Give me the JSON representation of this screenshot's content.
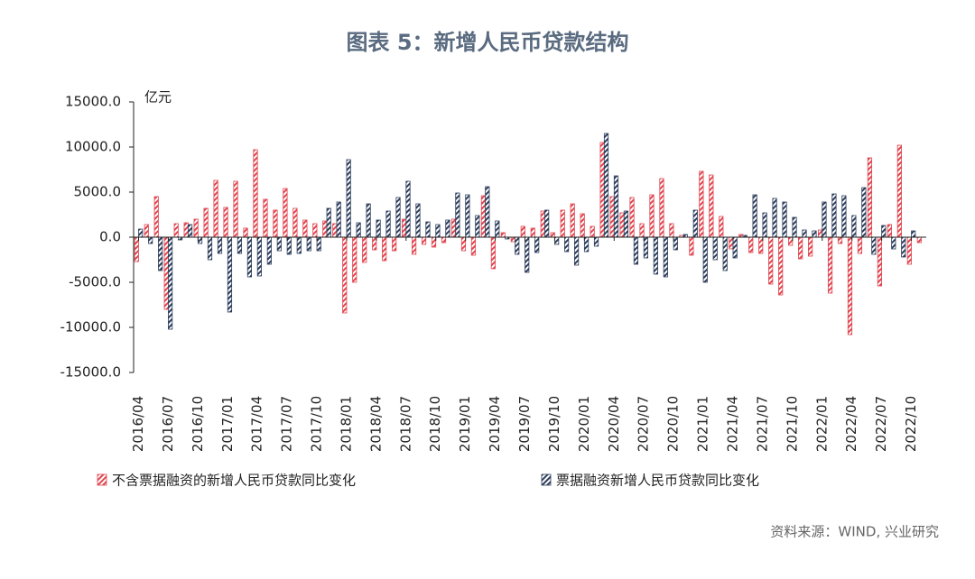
{
  "chart_data": {
    "type": "bar",
    "title": "图表 5：新增人民币贷款结构",
    "unit_label": "亿元",
    "source": "资料来源：WIND, 兴业研究",
    "categories": [
      "2016/04",
      null,
      null,
      "2016/07",
      null,
      null,
      "2016/10",
      null,
      null,
      "2017/01",
      null,
      null,
      "2017/04",
      null,
      null,
      "2017/07",
      null,
      null,
      "2017/10",
      null,
      null,
      "2018/01",
      null,
      null,
      "2018/04",
      null,
      null,
      "2018/07",
      null,
      null,
      "2018/10",
      null,
      null,
      "2019/01",
      null,
      null,
      "2019/04",
      null,
      null,
      "2019/07",
      null,
      null,
      "2019/10",
      null,
      null,
      "2020/01",
      null,
      null,
      "2020/04",
      null,
      null,
      "2020/07",
      null,
      null,
      "2020/10",
      null,
      null,
      "2021/01",
      null,
      null,
      "2021/04",
      null,
      null,
      "2021/07",
      null,
      null,
      "2021/10",
      null,
      null,
      "2022/01",
      null,
      null,
      "2022/04",
      null,
      null,
      "2022/07",
      null,
      null,
      "2022/10",
      null
    ],
    "series": [
      {
        "name": "不含票据融资的新增人民币贷款同比变化",
        "color": "#e0454f",
        "values": [
          -2700,
          1400,
          4500,
          -8000,
          1500,
          1600,
          2000,
          3200,
          6300,
          3300,
          6200,
          1000,
          9700,
          4200,
          3000,
          5400,
          3200,
          1900,
          1500,
          1800,
          1500,
          -8400,
          -5000,
          -2800,
          -1400,
          -2600,
          -1500,
          2000,
          -1900,
          -800,
          -1100,
          -600,
          2000,
          -1500,
          -2000,
          4600,
          -3500,
          500,
          -500,
          1200,
          1000,
          2900,
          500,
          3000,
          3700,
          2600,
          1200,
          10500,
          4500,
          2700,
          4400,
          1500,
          4700,
          6500,
          1500,
          200,
          -2000,
          7300,
          6900,
          2300,
          -1300,
          300,
          -1700,
          -1800,
          -5200,
          -6400,
          -900,
          -2400,
          -2100,
          800,
          -6200,
          -700,
          -10800,
          -1800,
          8800,
          -5400,
          1400,
          10200,
          -3000,
          -600
        ]
      },
      {
        "name": "票据融资新增人民币贷款同比变化",
        "color": "#2d3e5c",
        "values": [
          900,
          -700,
          -3700,
          -10200,
          -300,
          1400,
          -700,
          -2500,
          -1800,
          -8300,
          -1800,
          -4400,
          -4300,
          -3000,
          -1500,
          -1900,
          -1800,
          -1500,
          -1500,
          3200,
          3900,
          8600,
          1600,
          3700,
          1900,
          2900,
          4400,
          6200,
          3700,
          1700,
          1400,
          1900,
          4900,
          4700,
          2400,
          5600,
          1800,
          -200,
          -1900,
          -3900,
          -1700,
          3000,
          -800,
          -1600,
          -3100,
          -1600,
          -1000,
          11500,
          6800,
          2900,
          -3000,
          -2300,
          -4100,
          -4400,
          -1400,
          300,
          3000,
          -5000,
          -2500,
          -3700,
          -2300,
          200,
          4700,
          2700,
          4300,
          3900,
          2200,
          800,
          700,
          3900,
          4800,
          4600,
          2400,
          5500,
          -1900,
          1300,
          -1300,
          -2200,
          700,
          null
        ]
      }
    ],
    "ylim": [
      -15000,
      15000
    ],
    "yticks": [
      {
        "value": -15000,
        "label": "-15000.0"
      },
      {
        "value": -10000,
        "label": "-10000.0"
      },
      {
        "value": -5000,
        "label": "-5000.0"
      },
      {
        "value": 0,
        "label": "0.0"
      },
      {
        "value": 5000,
        "label": "5000.0"
      },
      {
        "value": 10000,
        "label": "10000.0"
      },
      {
        "value": 15000,
        "label": "15000.0"
      }
    ],
    "legend": "bottom"
  }
}
